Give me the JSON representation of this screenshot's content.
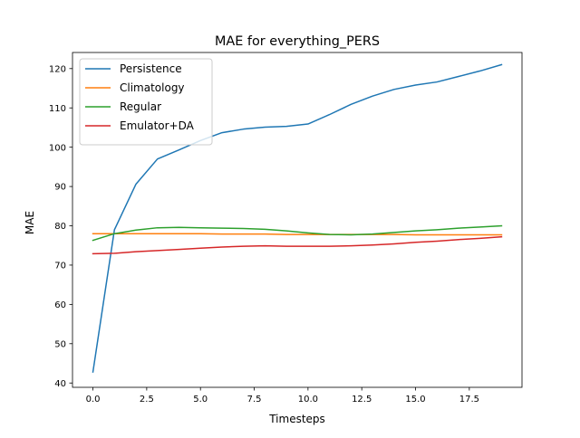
{
  "chart_data": {
    "type": "line",
    "title": "MAE for everything_PERS",
    "xlabel": "Timesteps",
    "ylabel": "MAE",
    "xlim": [
      -0.95,
      19.95
    ],
    "ylim": [
      38.9,
      124.1
    ],
    "xticks": [
      0,
      2.5,
      5,
      7.5,
      10,
      12.5,
      15,
      17.5
    ],
    "xtick_labels": [
      "0.0",
      "2.5",
      "5.0",
      "7.5",
      "10.0",
      "12.5",
      "15.0",
      "17.5"
    ],
    "yticks": [
      40,
      50,
      60,
      70,
      80,
      90,
      100,
      110,
      120
    ],
    "ytick_labels": [
      "40",
      "50",
      "60",
      "70",
      "80",
      "90",
      "100",
      "110",
      "120"
    ],
    "grid": false,
    "legend_position": "top-left",
    "x": [
      0,
      1,
      2,
      3,
      4,
      5,
      6,
      7,
      8,
      9,
      10,
      11,
      12,
      13,
      14,
      15,
      16,
      17,
      18,
      19
    ],
    "series": [
      {
        "name": "Persistence",
        "color": "#1f77b4",
        "values": [
          42.8,
          79.0,
          90.6,
          97.0,
          99.3,
          101.7,
          103.7,
          104.6,
          105.1,
          105.3,
          105.9,
          108.3,
          110.9,
          113.0,
          114.7,
          115.8,
          116.6,
          118.0,
          119.4,
          121.0
        ]
      },
      {
        "name": "Climatology",
        "color": "#ff7f0e",
        "values": [
          78.0,
          78.0,
          78.0,
          78.0,
          78.0,
          78.0,
          77.9,
          77.9,
          77.9,
          77.8,
          77.8,
          77.8,
          77.8,
          77.8,
          77.8,
          77.7,
          77.7,
          77.7,
          77.7,
          77.7
        ]
      },
      {
        "name": "Regular",
        "color": "#2ca02c",
        "values": [
          76.3,
          78.0,
          78.9,
          79.5,
          79.6,
          79.5,
          79.4,
          79.3,
          79.1,
          78.7,
          78.2,
          77.8,
          77.7,
          77.9,
          78.3,
          78.7,
          79.0,
          79.4,
          79.7,
          80.0
        ]
      },
      {
        "name": "Emulator+DA",
        "color": "#d62728",
        "values": [
          72.9,
          73.0,
          73.4,
          73.7,
          74.0,
          74.3,
          74.6,
          74.8,
          74.9,
          74.8,
          74.8,
          74.8,
          74.9,
          75.1,
          75.4,
          75.8,
          76.1,
          76.5,
          76.8,
          77.2
        ]
      }
    ]
  }
}
